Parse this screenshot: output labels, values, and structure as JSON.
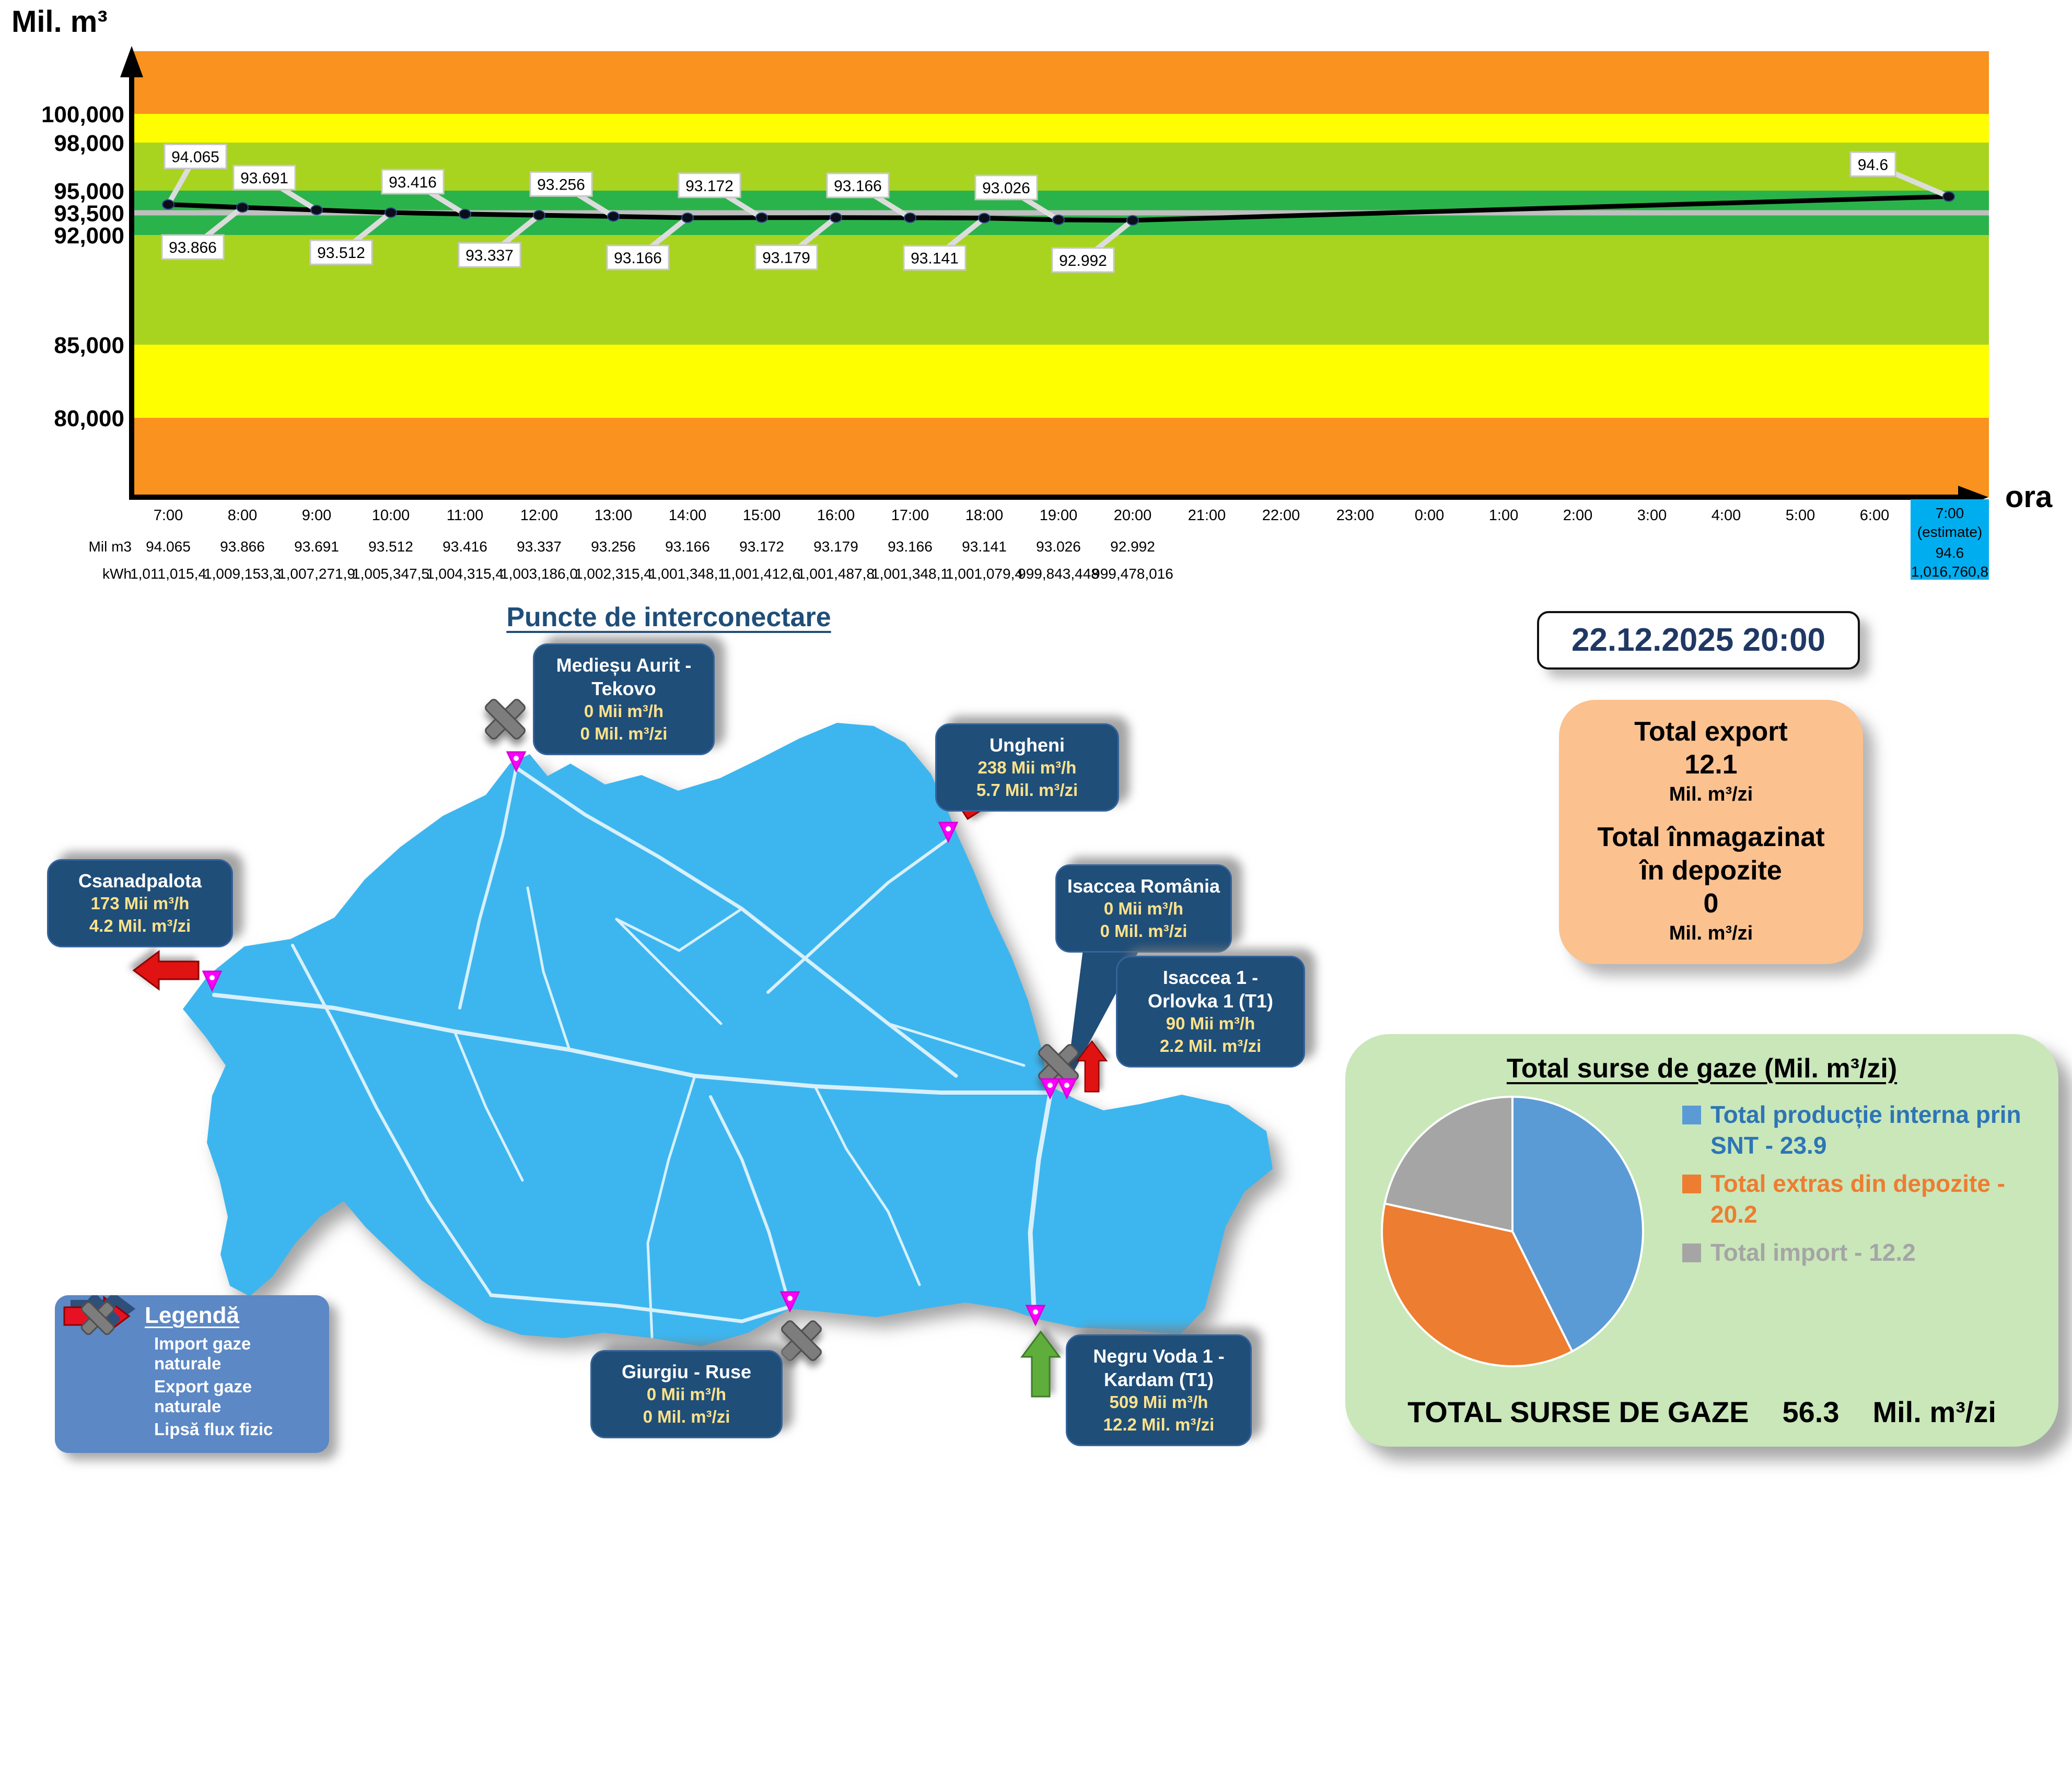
{
  "chart": {
    "y_axis_title": "Mil. m³",
    "x_axis_title": "ora"
  },
  "chart_data": [
    {
      "type": "line",
      "title": "",
      "ylabel": "Mil. m³",
      "xlabel": "ora",
      "x": [
        "7:00",
        "8:00",
        "9:00",
        "10:00",
        "11:00",
        "12:00",
        "13:00",
        "14:00",
        "15:00",
        "16:00",
        "17:00",
        "18:00",
        "19:00",
        "20:00",
        "21:00",
        "22:00",
        "23:00",
        "0:00",
        "1:00",
        "2:00",
        "3:00",
        "4:00",
        "5:00",
        "6:00",
        "7:00 (estimate)"
      ],
      "values": [
        94.065,
        93.866,
        93.691,
        93.512,
        93.416,
        93.337,
        93.256,
        93.166,
        93.172,
        93.179,
        93.166,
        93.141,
        93.026,
        92.992,
        null,
        null,
        null,
        null,
        null,
        null,
        null,
        null,
        null,
        null,
        94.6
      ],
      "y_ticks": [
        {
          "value": 100000,
          "label": "100,000"
        },
        {
          "value": 98000,
          "label": "98,000"
        },
        {
          "value": 95000,
          "label": "95,000"
        },
        {
          "value": 93500,
          "label": "93,500"
        },
        {
          "value": 92000,
          "label": "92,000"
        },
        {
          "value": 85000,
          "label": "85,000"
        },
        {
          "value": 80000,
          "label": "80,000"
        }
      ],
      "bands": [
        {
          "from": null,
          "to": 80000,
          "color": "#F9921E"
        },
        {
          "from": 80000,
          "to": 85000,
          "color": "#FEFE00"
        },
        {
          "from": 85000,
          "to": 92000,
          "color": "#A8D420"
        },
        {
          "from": 92000,
          "to": 95000,
          "color": "#2BB34B"
        },
        {
          "from": 95000,
          "to": 98000,
          "color": "#A8D420"
        },
        {
          "from": 98000,
          "to": 100000,
          "color": "#FEFE00"
        },
        {
          "from": 100000,
          "to": null,
          "color": "#F9921E"
        }
      ],
      "reference_line": {
        "value": 93500,
        "color": "#BFBFBF"
      },
      "table": {
        "rows": [
          {
            "label": "Mil m3",
            "values": [
              "94.065",
              "93.866",
              "93.691",
              "93.512",
              "93.416",
              "93.337",
              "93.256",
              "93.166",
              "93.172",
              "93.179",
              "93.166",
              "93.141",
              "93.026",
              "92.992"
            ]
          },
          {
            "label": "kWh",
            "values": [
              "1,011,015,4",
              "1,009,153,3",
              "1,007,271,9",
              "1,005,347,5",
              "1,004,315,4",
              "1,003,186,0",
              "1,002,315,4",
              "1,001,348,1",
              "1,001,412,6",
              "1,001,487,8",
              "1,001,348,1",
              "1,001,079,4",
              "999,843,448",
              "999,478,016"
            ]
          }
        ]
      },
      "estimate_cell": {
        "time": "7:00",
        "note": "(estimate)",
        "mil_m3": "94.6",
        "kwh": "1,016,760,8",
        "bg": "#00AEEF"
      }
    },
    {
      "type": "pie",
      "title": "Total surse de gaze  (Mil. m³/zi)",
      "labels": [
        "Total producție interna prin SNT",
        "Total extras din depozite",
        "Total import"
      ],
      "values": [
        23.9,
        20.2,
        12.2
      ],
      "colors": [
        "#5B9BD5",
        "#ED7D31",
        "#A5A5A5"
      ],
      "legend_labels": [
        "Total producție interna prin SNT - 23.9",
        "Total extras din depozite - 20.2",
        "Total import - 12.2"
      ],
      "legend_position": "right",
      "total_label": "TOTAL SURSE DE GAZE",
      "total_value": "56.3",
      "total_unit": "Mil. m³/zi"
    }
  ],
  "map": {
    "title": "Puncte de interconectare",
    "land_color": "#3DB6EF",
    "marker_color": "#FF00FF",
    "callout_color": "#1F4E79",
    "points": [
      {
        "name": "Medieșu Aurit - Tekovo",
        "line1": "0 Mii  m³/h",
        "line2": "0 Mil. m³/zi",
        "flow": "none"
      },
      {
        "name": "Ungheni",
        "line1": "238 Mii  m³/h",
        "line2": "5.7 Mil. m³/zi",
        "flow": "export"
      },
      {
        "name": "Isaccea România",
        "line1": "0 Mii  m³/h",
        "line2": "0 Mil. m³/zi",
        "flow": "none"
      },
      {
        "name": "Isaccea 1 - Orlovka 1 (T1)",
        "line1": "90 Mii  m³/h",
        "line2": "2.2 Mil. m³/zi",
        "flow": "export"
      },
      {
        "name": "Csanadpalota",
        "line1": "173 Mii  m³/h",
        "line2": "4.2 Mil. m³/zi",
        "flow": "export"
      },
      {
        "name": "Giurgiu - Ruse",
        "line1": "0 Mii  m³/h",
        "line2": "0 Mil. m³/zi",
        "flow": "none"
      },
      {
        "name": "Negru Voda 1 - Kardam (T1)",
        "line1": "509 Mii  m³/h",
        "line2": "12.2 Mil. m³/zi",
        "flow": "import"
      }
    ]
  },
  "legend": {
    "title": "Legendă",
    "items": [
      {
        "icon": "green-arrow",
        "label": "Import gaze naturale"
      },
      {
        "icon": "red-arrow",
        "label": "Export gaze naturale"
      },
      {
        "icon": "gray-x",
        "label": "Lipsă flux fizic"
      }
    ]
  },
  "snapshot": {
    "datetime": "22.12.2025 20:00",
    "export_label": "Total export",
    "export_value": "12.1",
    "export_unit": "Mil. m³/zi",
    "storage_label1": "Total înmagazinat",
    "storage_label2": "în depozite",
    "storage_value": "0",
    "storage_unit": "Mil. m³/zi"
  }
}
